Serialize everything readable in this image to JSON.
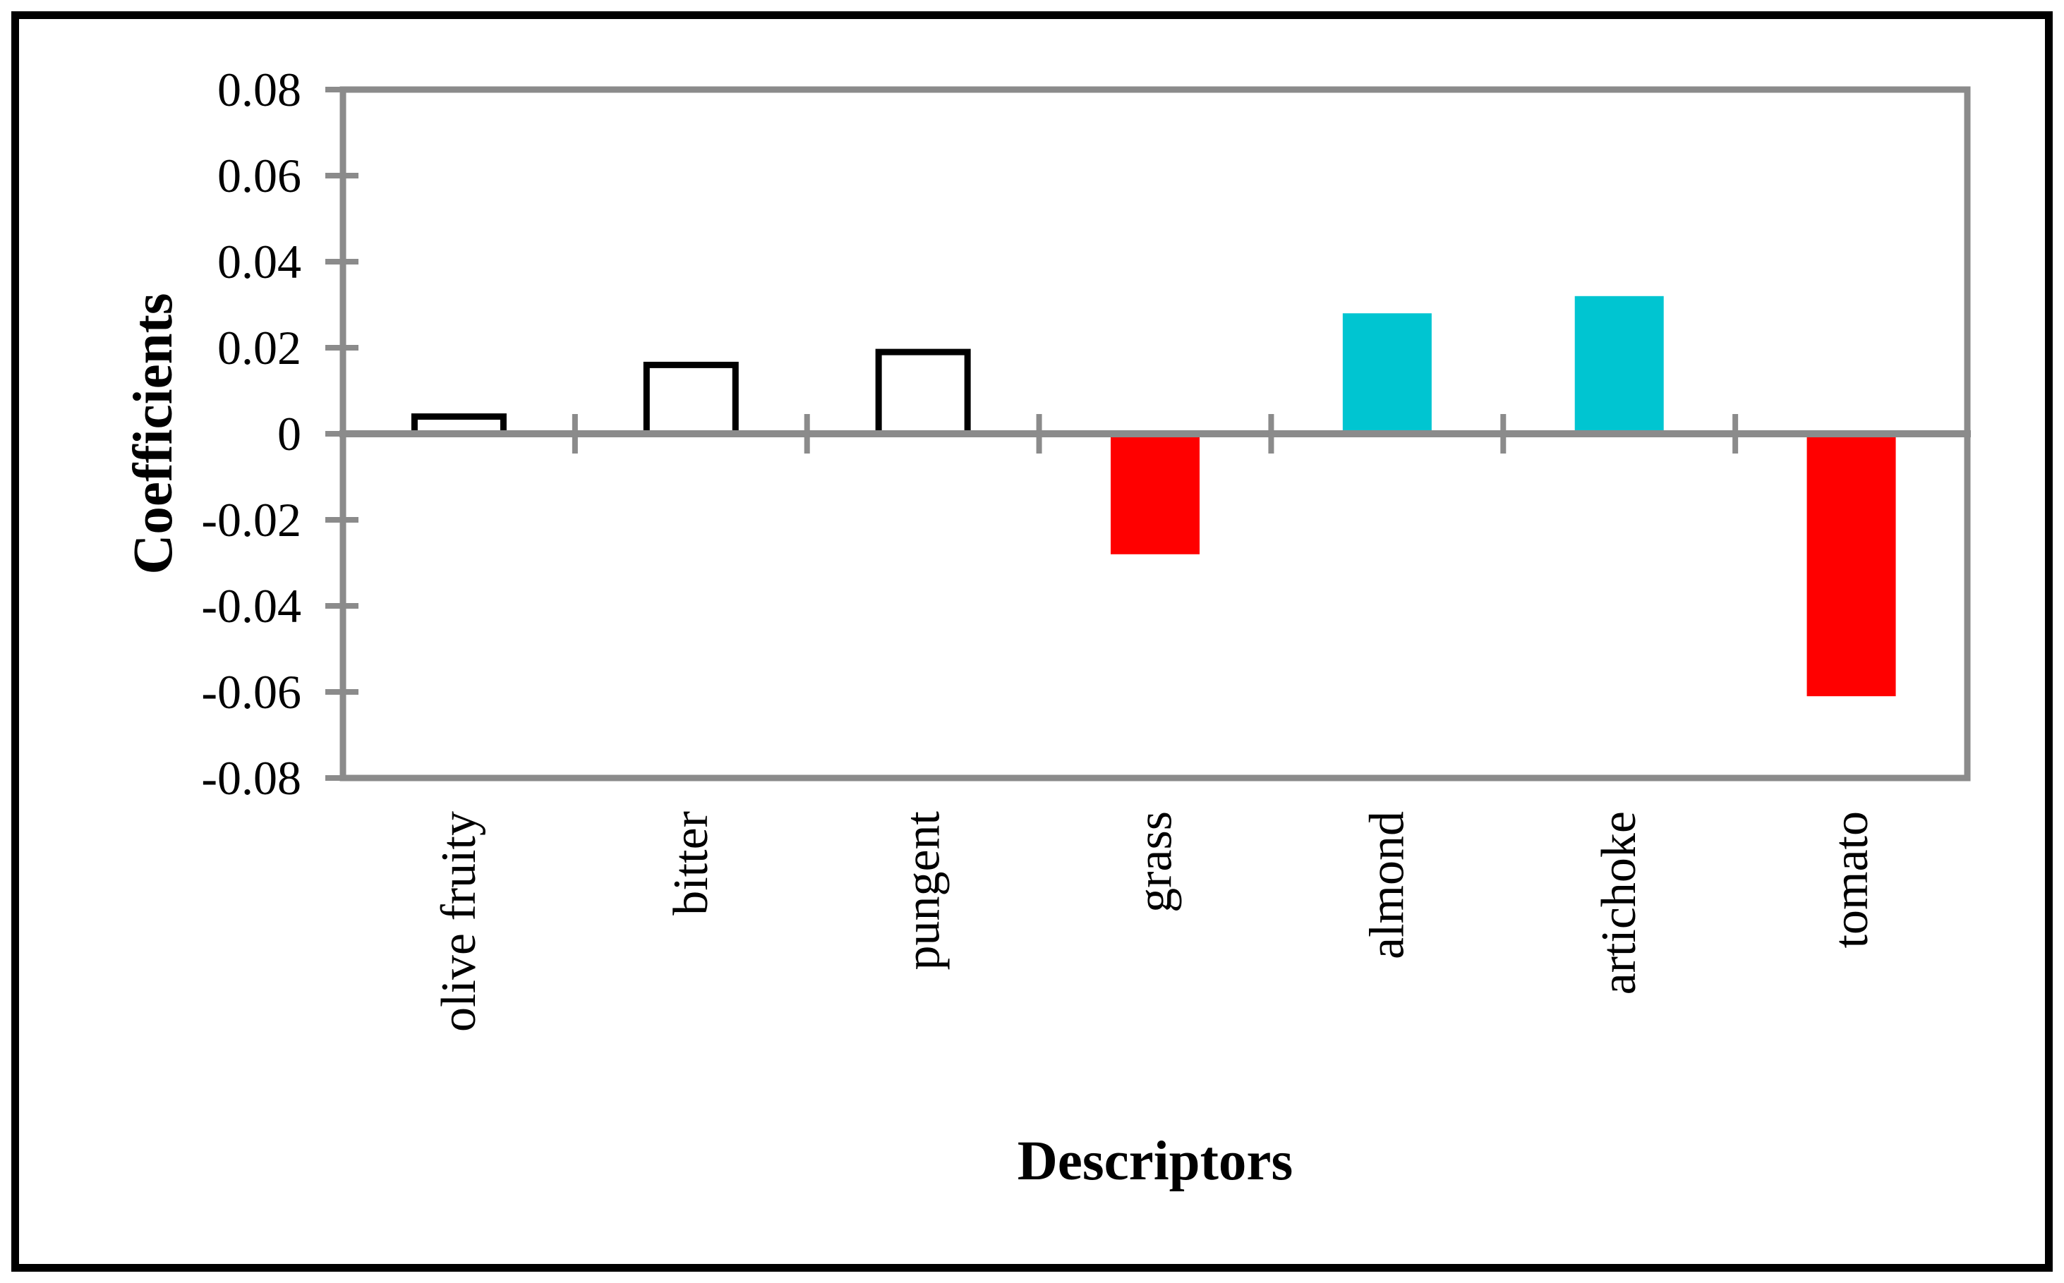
{
  "chart_data": {
    "type": "bar",
    "title": "",
    "xlabel": "Descriptors",
    "ylabel": "Coefficients",
    "categories": [
      "olive fruity",
      "bitter",
      "pungent",
      "grass",
      "almond",
      "artichoke",
      "tomato"
    ],
    "values": [
      0.004,
      0.016,
      0.019,
      -0.028,
      0.028,
      0.032,
      -0.061
    ],
    "bars": [
      {
        "label": "olive fruity",
        "value": 0.004,
        "fill": "#FFFFFF",
        "stroke": "#000000"
      },
      {
        "label": "bitter",
        "value": 0.016,
        "fill": "#FFFFFF",
        "stroke": "#000000"
      },
      {
        "label": "pungent",
        "value": 0.019,
        "fill": "#FFFFFF",
        "stroke": "#000000"
      },
      {
        "label": "grass",
        "value": -0.028,
        "fill": "#FF0000",
        "stroke": "none"
      },
      {
        "label": "almond",
        "value": 0.028,
        "fill": "#00C5D1",
        "stroke": "none"
      },
      {
        "label": "artichoke",
        "value": 0.032,
        "fill": "#00C5D1",
        "stroke": "none"
      },
      {
        "label": "tomato",
        "value": -0.061,
        "fill": "#FF0000",
        "stroke": "none"
      }
    ],
    "ylim": [
      -0.08,
      0.08
    ],
    "ytick_step": 0.02,
    "ytick_labels": [
      "0.08",
      "0.06",
      "0.04",
      "0.02",
      "0",
      "-0.02",
      "-0.04",
      "-0.06",
      "-0.08"
    ],
    "grid": false,
    "legend": null,
    "colors": {
      "axis": "#8B8B8B",
      "positive_highlight": "#00C5D1",
      "negative_highlight": "#FF0000",
      "neutral_fill": "#FFFFFF",
      "neutral_stroke": "#000000",
      "text": "#000000",
      "outer_border": "#000000"
    }
  }
}
